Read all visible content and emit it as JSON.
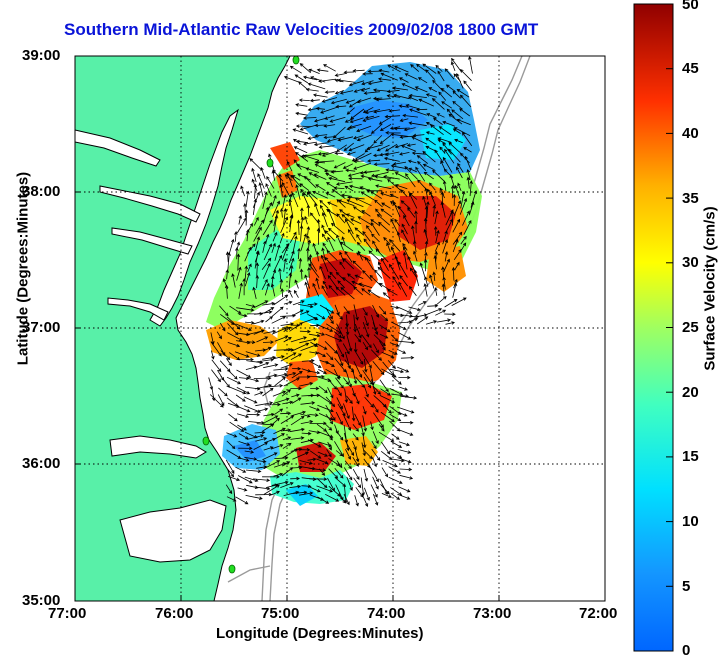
{
  "map": {
    "title": "Southern Mid-Atlantic Raw Velocities 2009/02/08 1800 GMT",
    "x_axis_label": "Longitude (Degrees:Minutes)",
    "y_axis_label": "Latitude (Degrees:Minutes)",
    "x_ticks": [
      "77:00",
      "76:00",
      "75:00",
      "74:00",
      "73:00",
      "72:00"
    ],
    "y_ticks": [
      "39:00",
      "38:00",
      "37:00",
      "36:00",
      "35:00"
    ],
    "grid": true,
    "land_color": "#58f0a8",
    "water_color": "#ffffff",
    "coastline_color": "#000000",
    "bathymetry_color": "#999999",
    "station_color": "#22cc22"
  },
  "colorbar": {
    "label": "Surface Velocity (cm/s)",
    "ticks": [
      "0",
      "5",
      "10",
      "15",
      "20",
      "25",
      "30",
      "35",
      "40",
      "45",
      "50"
    ],
    "range": [
      0,
      50
    ],
    "colormap": "jet"
  }
}
